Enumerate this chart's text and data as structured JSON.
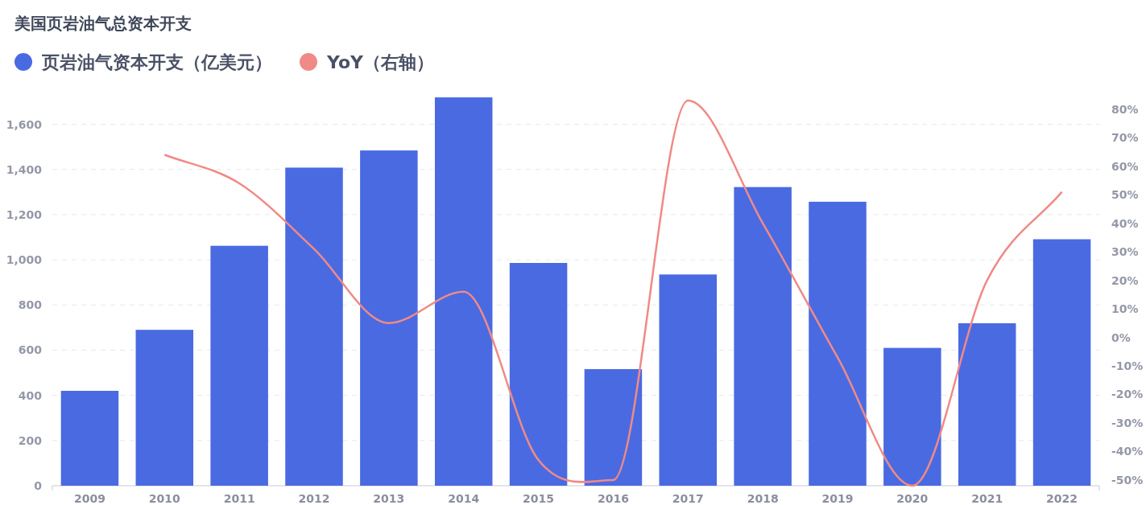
{
  "chart_data": {
    "type": "bar",
    "title": "美国页岩油气总资本开支",
    "categories": [
      "2009",
      "2010",
      "2011",
      "2012",
      "2013",
      "2014",
      "2015",
      "2016",
      "2017",
      "2018",
      "2019",
      "2020",
      "2021",
      "2022"
    ],
    "series": [
      {
        "name": "页岩油气资本开支（亿美元）",
        "color": "#4a6ae2",
        "values": [
          420,
          690,
          1062,
          1408,
          1484,
          1719,
          986,
          516,
          935,
          1322,
          1257,
          610,
          719,
          1091
        ]
      },
      {
        "name": "YoY（右轴）",
        "color": "#f08a86",
        "type": "line",
        "axis": "y2",
        "values": [
          null,
          64,
          54,
          31,
          5,
          16,
          -43,
          -50,
          83,
          40,
          -7,
          -52,
          20,
          51
        ]
      }
    ],
    "ylim": [
      0,
      1730
    ],
    "yticks": [
      0,
      200,
      400,
      600,
      800,
      {
        "value": 1000,
        "label": "1,000"
      },
      {
        "value": 1200,
        "label": "1,200"
      },
      {
        "value": 1400,
        "label": "1,400"
      },
      {
        "value": 1600,
        "label": "1,600"
      }
    ],
    "y2lim": [
      -52,
      85
    ],
    "y2ticks": [
      {
        "value": -50,
        "label": "-50%"
      },
      {
        "value": -40,
        "label": "-40%"
      },
      {
        "value": -30,
        "label": "-30%"
      },
      {
        "value": -20,
        "label": "-20%"
      },
      {
        "value": -10,
        "label": "-10%"
      },
      {
        "value": 0,
        "label": "0%"
      },
      {
        "value": 10,
        "label": "10%"
      },
      {
        "value": 20,
        "label": "20%"
      },
      {
        "value": 30,
        "label": "30%"
      },
      {
        "value": 40,
        "label": "40%"
      },
      {
        "value": 50,
        "label": "50%"
      },
      {
        "value": 60,
        "label": "60%"
      },
      {
        "value": 70,
        "label": "70%"
      },
      {
        "value": 80,
        "label": "80%"
      }
    ],
    "grid": "y",
    "legend": "top left",
    "marker": "none",
    "line_style": "solid"
  }
}
